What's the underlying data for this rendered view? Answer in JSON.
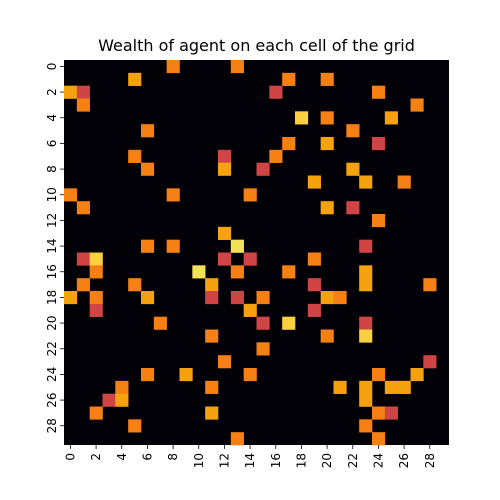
{
  "chart_data": {
    "type": "heatmap",
    "title": "Wealth of agent on each cell of the grid",
    "xlabel": "",
    "ylabel": "",
    "rows": 30,
    "cols": 30,
    "x_ticks": [
      "0",
      "2",
      "4",
      "6",
      "8",
      "10",
      "12",
      "14",
      "16",
      "18",
      "20",
      "22",
      "24",
      "26",
      "28"
    ],
    "y_ticks": [
      "0",
      "2",
      "4",
      "6",
      "8",
      "10",
      "12",
      "14",
      "16",
      "18",
      "20",
      "22",
      "24",
      "26",
      "28"
    ],
    "colormap": {
      "0": "#030108",
      "1": "#f68013",
      "2": "#f6a20f",
      "3": "#cf4445",
      "4": "#f0e35a",
      "5": "#fad040"
    },
    "colorbar": false,
    "cells": [
      {
        "row": 0,
        "col": 8,
        "value": 1
      },
      {
        "row": 0,
        "col": 13,
        "value": 1
      },
      {
        "row": 1,
        "col": 5,
        "value": 2
      },
      {
        "row": 1,
        "col": 17,
        "value": 1
      },
      {
        "row": 1,
        "col": 20,
        "value": 1
      },
      {
        "row": 2,
        "col": 0,
        "value": 2
      },
      {
        "row": 2,
        "col": 1,
        "value": 3
      },
      {
        "row": 2,
        "col": 16,
        "value": 3
      },
      {
        "row": 2,
        "col": 24,
        "value": 1
      },
      {
        "row": 3,
        "col": 1,
        "value": 1
      },
      {
        "row": 3,
        "col": 27,
        "value": 1
      },
      {
        "row": 4,
        "col": 18,
        "value": 5
      },
      {
        "row": 4,
        "col": 20,
        "value": 1
      },
      {
        "row": 4,
        "col": 25,
        "value": 2
      },
      {
        "row": 5,
        "col": 6,
        "value": 1
      },
      {
        "row": 5,
        "col": 22,
        "value": 1
      },
      {
        "row": 6,
        "col": 17,
        "value": 1
      },
      {
        "row": 6,
        "col": 20,
        "value": 2
      },
      {
        "row": 6,
        "col": 24,
        "value": 3
      },
      {
        "row": 7,
        "col": 5,
        "value": 1
      },
      {
        "row": 7,
        "col": 12,
        "value": 3
      },
      {
        "row": 7,
        "col": 16,
        "value": 1
      },
      {
        "row": 8,
        "col": 6,
        "value": 1
      },
      {
        "row": 8,
        "col": 12,
        "value": 2
      },
      {
        "row": 8,
        "col": 15,
        "value": 3
      },
      {
        "row": 8,
        "col": 22,
        "value": 2
      },
      {
        "row": 9,
        "col": 19,
        "value": 2
      },
      {
        "row": 9,
        "col": 23,
        "value": 2
      },
      {
        "row": 9,
        "col": 26,
        "value": 1
      },
      {
        "row": 10,
        "col": 0,
        "value": 1
      },
      {
        "row": 10,
        "col": 8,
        "value": 1
      },
      {
        "row": 10,
        "col": 14,
        "value": 1
      },
      {
        "row": 11,
        "col": 1,
        "value": 1
      },
      {
        "row": 11,
        "col": 20,
        "value": 2
      },
      {
        "row": 11,
        "col": 22,
        "value": 3
      },
      {
        "row": 12,
        "col": 24,
        "value": 1
      },
      {
        "row": 13,
        "col": 12,
        "value": 2
      },
      {
        "row": 14,
        "col": 6,
        "value": 1
      },
      {
        "row": 14,
        "col": 8,
        "value": 1
      },
      {
        "row": 14,
        "col": 13,
        "value": 4
      },
      {
        "row": 14,
        "col": 23,
        "value": 3
      },
      {
        "row": 15,
        "col": 1,
        "value": 3
      },
      {
        "row": 15,
        "col": 2,
        "value": 5
      },
      {
        "row": 15,
        "col": 12,
        "value": 3
      },
      {
        "row": 15,
        "col": 14,
        "value": 3
      },
      {
        "row": 15,
        "col": 19,
        "value": 1
      },
      {
        "row": 16,
        "col": 2,
        "value": 1
      },
      {
        "row": 16,
        "col": 10,
        "value": 4
      },
      {
        "row": 16,
        "col": 13,
        "value": 1
      },
      {
        "row": 16,
        "col": 17,
        "value": 1
      },
      {
        "row": 16,
        "col": 23,
        "value": 2
      },
      {
        "row": 17,
        "col": 1,
        "value": 1
      },
      {
        "row": 17,
        "col": 5,
        "value": 1
      },
      {
        "row": 17,
        "col": 11,
        "value": 2
      },
      {
        "row": 17,
        "col": 19,
        "value": 3
      },
      {
        "row": 17,
        "col": 23,
        "value": 2
      },
      {
        "row": 17,
        "col": 28,
        "value": 1
      },
      {
        "row": 18,
        "col": 0,
        "value": 2
      },
      {
        "row": 18,
        "col": 2,
        "value": 1
      },
      {
        "row": 18,
        "col": 6,
        "value": 2
      },
      {
        "row": 18,
        "col": 11,
        "value": 3
      },
      {
        "row": 18,
        "col": 13,
        "value": 3
      },
      {
        "row": 18,
        "col": 15,
        "value": 1
      },
      {
        "row": 18,
        "col": 20,
        "value": 2
      },
      {
        "row": 18,
        "col": 21,
        "value": 1
      },
      {
        "row": 19,
        "col": 2,
        "value": 3
      },
      {
        "row": 19,
        "col": 14,
        "value": 2
      },
      {
        "row": 19,
        "col": 19,
        "value": 3
      },
      {
        "row": 20,
        "col": 7,
        "value": 1
      },
      {
        "row": 20,
        "col": 15,
        "value": 3
      },
      {
        "row": 20,
        "col": 17,
        "value": 5
      },
      {
        "row": 20,
        "col": 23,
        "value": 3
      },
      {
        "row": 21,
        "col": 11,
        "value": 1
      },
      {
        "row": 21,
        "col": 20,
        "value": 1
      },
      {
        "row": 21,
        "col": 23,
        "value": 5
      },
      {
        "row": 22,
        "col": 15,
        "value": 1
      },
      {
        "row": 23,
        "col": 12,
        "value": 1
      },
      {
        "row": 23,
        "col": 28,
        "value": 3
      },
      {
        "row": 24,
        "col": 6,
        "value": 1
      },
      {
        "row": 24,
        "col": 9,
        "value": 2
      },
      {
        "row": 24,
        "col": 14,
        "value": 1
      },
      {
        "row": 24,
        "col": 24,
        "value": 1
      },
      {
        "row": 24,
        "col": 27,
        "value": 2
      },
      {
        "row": 25,
        "col": 4,
        "value": 1
      },
      {
        "row": 25,
        "col": 11,
        "value": 1
      },
      {
        "row": 25,
        "col": 21,
        "value": 2
      },
      {
        "row": 25,
        "col": 23,
        "value": 2
      },
      {
        "row": 25,
        "col": 25,
        "value": 2
      },
      {
        "row": 25,
        "col": 26,
        "value": 2
      },
      {
        "row": 26,
        "col": 3,
        "value": 3
      },
      {
        "row": 26,
        "col": 4,
        "value": 2
      },
      {
        "row": 26,
        "col": 23,
        "value": 2
      },
      {
        "row": 27,
        "col": 2,
        "value": 1
      },
      {
        "row": 27,
        "col": 11,
        "value": 2
      },
      {
        "row": 27,
        "col": 24,
        "value": 1
      },
      {
        "row": 27,
        "col": 25,
        "value": 3
      },
      {
        "row": 28,
        "col": 5,
        "value": 1
      },
      {
        "row": 28,
        "col": 23,
        "value": 1
      },
      {
        "row": 29,
        "col": 13,
        "value": 1
      },
      {
        "row": 29,
        "col": 24,
        "value": 1
      }
    ]
  }
}
